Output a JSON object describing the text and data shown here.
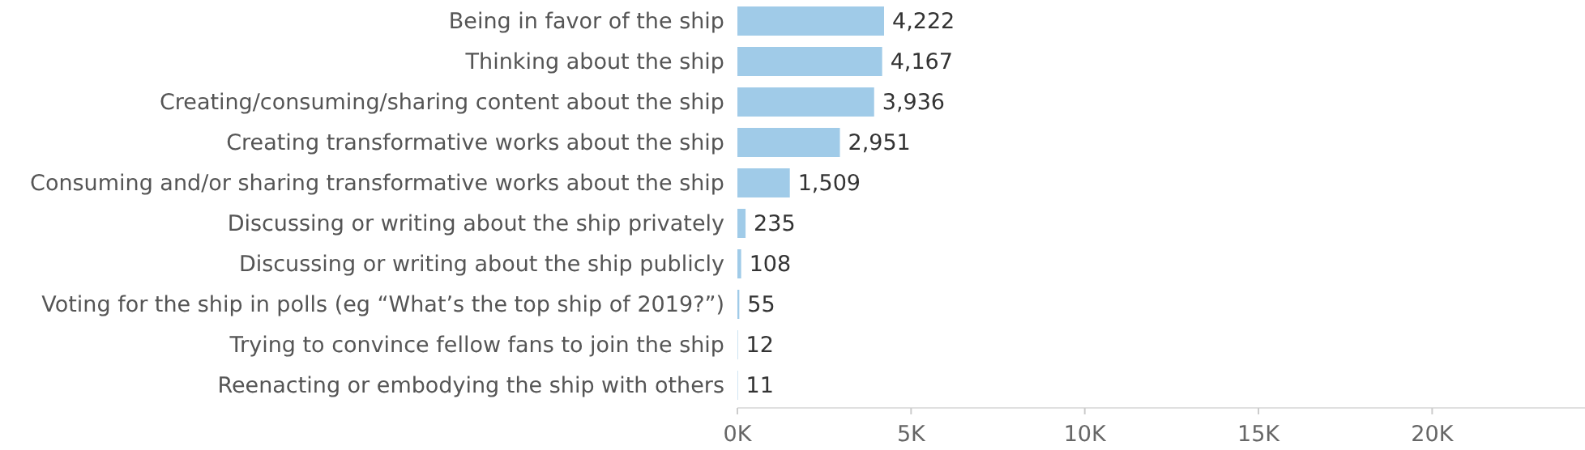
{
  "chart_data": {
    "type": "bar",
    "orientation": "horizontal",
    "categories": [
      "Being in favor of the ship",
      "Thinking about the ship",
      "Creating/consuming/sharing content about the ship",
      "Creating transformative works about the ship",
      "Consuming and/or sharing transformative works about the ship",
      "Discussing or writing about the ship privately",
      "Discussing or writing about the ship publicly",
      "Voting for the ship in polls (eg “What’s the top ship of 2019?”)",
      "Trying to convince fellow fans to join the ship",
      "Reenacting or embodying the ship with others"
    ],
    "values": [
      4222,
      4167,
      3936,
      2951,
      1509,
      235,
      108,
      55,
      12,
      11
    ],
    "value_labels": [
      "4,222",
      "4,167",
      "3,936",
      "2,951",
      "1,509",
      "235",
      "108",
      "55",
      "12",
      "11"
    ],
    "color": "#a0cbe8",
    "xlim": [
      0,
      24400
    ],
    "xticks": [
      {
        "value": 0,
        "label": "0K"
      },
      {
        "value": 5000,
        "label": "5K"
      },
      {
        "value": 10000,
        "label": "10K"
      },
      {
        "value": 15000,
        "label": "15K"
      },
      {
        "value": 20000,
        "label": "20K"
      }
    ],
    "grid": false
  }
}
